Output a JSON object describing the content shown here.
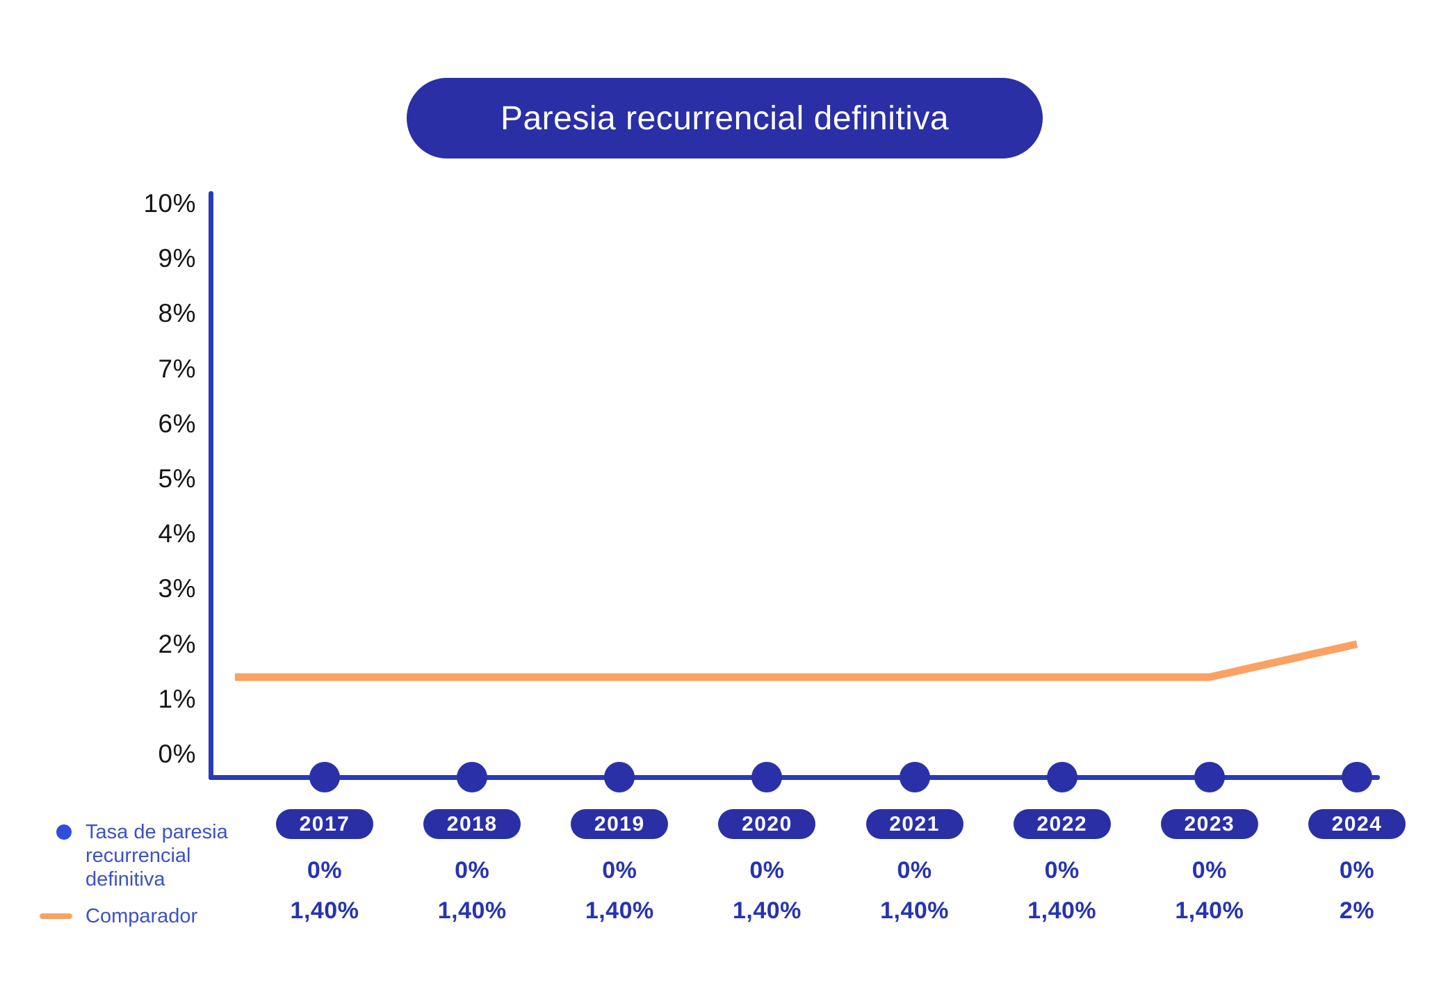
{
  "colors": {
    "deep_blue": "#2A2FA6",
    "axis_blue": "#2B3AB8",
    "dot_blue": "#2A31A8",
    "bright_blue": "#2F4DDE",
    "legend_blue": "#3B52C6",
    "value_blue": "#2634B0",
    "orange": "#F9A263",
    "tick_black": "#151515",
    "title_text": "#FFFFFF"
  },
  "chart_data": {
    "type": "line",
    "title": "Paresia recurrencial definitiva",
    "x": [
      "2017",
      "2018",
      "2019",
      "2020",
      "2021",
      "2022",
      "2023",
      "2024"
    ],
    "series": [
      {
        "name": "Tasa de paresia recurrencial definitiva",
        "label_lines": [
          "Tasa de paresia",
          "recurrencial",
          "definitiva"
        ],
        "marker": "dot",
        "color": "#2A31A8",
        "values": [
          0,
          0,
          0,
          0,
          0,
          0,
          0,
          0
        ],
        "display_values": [
          "0%",
          "0%",
          "0%",
          "0%",
          "0%",
          "0%",
          "0%",
          "0%"
        ]
      },
      {
        "name": "Comparador",
        "marker": "line",
        "color": "#F9A263",
        "values": [
          1.4,
          1.4,
          1.4,
          1.4,
          1.4,
          1.4,
          1.4,
          2
        ],
        "display_values": [
          "1,40%",
          "1,40%",
          "1,40%",
          "1,40%",
          "1,40%",
          "1,40%",
          "1,40%",
          "2%"
        ]
      }
    ],
    "y_ticks": [
      "10%",
      "9%",
      "8%",
      "7%",
      "6%",
      "5%",
      "4%",
      "3%",
      "2%",
      "1%",
      "0%"
    ],
    "ylim": [
      0,
      10
    ],
    "grid": false,
    "legend_position": "bottom-left"
  }
}
